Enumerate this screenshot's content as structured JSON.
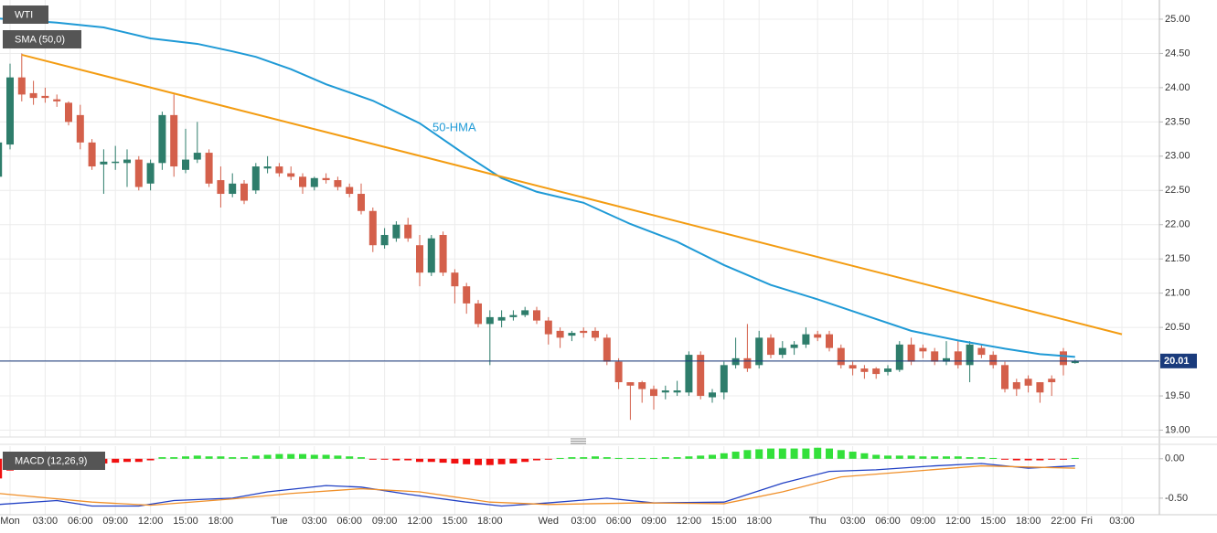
{
  "chart_data": [
    {
      "type": "candlestick",
      "title": "WTI",
      "categories": [
        null,
        "Mon",
        null,
        null,
        "03:00",
        null,
        null,
        "06:00",
        null,
        null,
        "09:00",
        null,
        null,
        "12:00",
        null,
        null,
        "15:00",
        null,
        null,
        "18:00",
        null,
        null,
        null,
        null,
        "Tue",
        null,
        null,
        "03:00",
        null,
        null,
        "06:00",
        null,
        null,
        "09:00",
        null,
        null,
        "12:00",
        null,
        null,
        "15:00",
        null,
        null,
        "18:00",
        null,
        null,
        null,
        null,
        "Wed",
        null,
        null,
        "03:00",
        null,
        null,
        "06:00",
        null,
        null,
        "09:00",
        null,
        null,
        "12:00",
        null,
        null,
        "15:00",
        null,
        null,
        "18:00",
        null,
        null,
        null,
        null,
        "Thu",
        null,
        null,
        "03:00",
        null,
        null,
        "06:00",
        null,
        null,
        "09:00",
        null,
        null,
        "12:00",
        null,
        null,
        "15:00",
        null,
        null,
        "18:00",
        null,
        null,
        "22:00",
        null,
        "Fri",
        null,
        null,
        "03:00"
      ],
      "open": [
        22.7,
        23.17,
        24.15,
        23.92,
        23.88,
        23.83,
        23.78,
        23.6,
        23.2,
        22.88,
        22.9,
        22.9,
        22.95,
        22.6,
        22.9,
        23.6,
        22.8,
        22.95,
        23.05,
        22.65,
        22.45,
        22.6,
        22.5,
        22.82,
        22.85,
        22.75,
        22.7,
        22.55,
        22.68,
        22.65,
        22.55,
        22.45,
        22.2,
        21.7,
        21.8,
        22.0,
        21.7,
        21.3,
        21.85,
        21.3,
        21.1,
        20.85,
        20.55,
        20.6,
        20.65,
        20.68,
        20.75,
        20.6,
        20.45,
        20.38,
        20.45,
        20.45,
        20.35,
        20.0,
        19.7,
        19.7,
        19.6,
        19.55,
        19.55,
        19.55,
        20.1,
        19.48,
        19.55,
        19.95,
        20.05,
        19.95,
        20.35,
        20.1,
        20.2,
        20.25,
        20.4,
        20.4,
        20.2,
        19.95,
        19.9,
        19.9,
        19.85,
        19.88,
        20.25,
        20.2,
        20.15,
        20.0,
        20.15,
        19.95,
        20.2,
        20.1,
        19.95,
        19.7,
        19.75,
        19.7,
        19.75,
        20.15,
        19.98,
        null,
        null,
        null,
        null
      ],
      "high": [
        23.5,
        24.35,
        24.5,
        24.1,
        24.0,
        23.9,
        23.8,
        23.75,
        23.25,
        23.1,
        23.15,
        23.1,
        23.0,
        22.95,
        23.65,
        23.9,
        23.4,
        23.5,
        23.1,
        22.85,
        22.75,
        22.65,
        22.9,
        23.0,
        22.9,
        22.85,
        22.75,
        22.7,
        22.75,
        22.7,
        22.6,
        22.6,
        22.25,
        21.95,
        22.05,
        22.1,
        21.85,
        21.85,
        21.9,
        21.35,
        21.15,
        20.9,
        20.75,
        20.75,
        20.75,
        20.8,
        20.8,
        20.65,
        20.5,
        20.45,
        20.5,
        20.5,
        20.4,
        20.05,
        19.7,
        19.72,
        19.65,
        19.65,
        19.72,
        20.15,
        20.15,
        19.6,
        20.0,
        20.35,
        20.55,
        20.45,
        20.4,
        20.3,
        20.3,
        20.5,
        20.45,
        20.45,
        20.25,
        20.0,
        19.95,
        19.92,
        19.95,
        20.3,
        20.35,
        20.25,
        20.2,
        20.3,
        20.3,
        20.3,
        20.25,
        20.15,
        20.0,
        19.75,
        19.8,
        19.7,
        19.8,
        20.2,
        20.03,
        null,
        null,
        null,
        null
      ],
      "low": [
        22.6,
        23.1,
        23.8,
        23.75,
        23.78,
        23.72,
        23.45,
        23.1,
        22.8,
        22.45,
        22.8,
        22.55,
        22.5,
        22.5,
        22.8,
        22.7,
        22.75,
        22.9,
        22.55,
        22.25,
        22.4,
        22.3,
        22.45,
        22.75,
        22.7,
        22.65,
        22.45,
        22.5,
        22.6,
        22.5,
        22.4,
        22.15,
        21.6,
        21.65,
        21.75,
        21.75,
        21.1,
        21.25,
        21.25,
        20.85,
        20.7,
        20.5,
        19.95,
        20.5,
        20.6,
        20.65,
        20.55,
        20.25,
        20.2,
        20.3,
        20.35,
        20.3,
        19.95,
        19.6,
        19.15,
        19.4,
        19.3,
        19.45,
        19.5,
        19.5,
        19.45,
        19.4,
        19.45,
        19.9,
        19.85,
        19.9,
        20.05,
        20.05,
        20.1,
        20.2,
        20.3,
        20.15,
        19.9,
        19.8,
        19.75,
        19.75,
        19.8,
        19.85,
        19.95,
        20.05,
        19.95,
        19.95,
        19.9,
        19.7,
        20.05,
        19.9,
        19.55,
        19.5,
        19.55,
        19.4,
        19.5,
        19.8,
        19.97,
        null,
        null,
        null,
        null
      ],
      "close": [
        23.2,
        24.15,
        23.9,
        23.85,
        23.85,
        23.8,
        23.5,
        23.2,
        22.85,
        22.92,
        22.92,
        22.95,
        22.55,
        22.9,
        23.6,
        22.85,
        22.95,
        23.05,
        22.6,
        22.45,
        22.6,
        22.35,
        22.85,
        22.85,
        22.75,
        22.7,
        22.55,
        22.68,
        22.65,
        22.55,
        22.45,
        22.2,
        21.7,
        21.85,
        22.0,
        21.8,
        21.3,
        21.8,
        21.3,
        21.1,
        20.85,
        20.55,
        20.65,
        20.65,
        20.68,
        20.75,
        20.6,
        20.4,
        20.35,
        20.42,
        20.42,
        20.35,
        20.0,
        19.7,
        19.65,
        19.6,
        19.5,
        19.58,
        19.58,
        20.1,
        19.5,
        19.55,
        19.95,
        20.05,
        19.9,
        20.35,
        20.1,
        20.2,
        20.25,
        20.4,
        20.35,
        20.2,
        19.95,
        19.9,
        19.85,
        19.82,
        19.9,
        20.25,
        20.0,
        20.15,
        20.0,
        20.05,
        19.95,
        20.25,
        20.1,
        19.95,
        19.6,
        19.6,
        19.65,
        19.55,
        19.7,
        19.95,
        20.01,
        null,
        null,
        null,
        null
      ],
      "up_color": "#2e7d6b",
      "down_color": "#d4604b",
      "overlays": [
        {
          "name": "SMA (50,0)",
          "annotation": "50-HMA",
          "color": "#1f9ad6",
          "x": [
            0,
            5,
            9,
            13,
            17,
            20,
            22,
            25,
            28,
            32,
            36,
            40,
            43,
            46,
            50,
            54,
            58,
            62,
            66,
            70,
            74,
            78,
            82,
            86,
            89,
            92
          ],
          "values": [
            25.01,
            24.95,
            24.88,
            24.72,
            24.64,
            24.53,
            24.45,
            24.27,
            24.05,
            23.81,
            23.48,
            23.01,
            22.68,
            22.48,
            22.32,
            22.01,
            21.75,
            21.41,
            21.12,
            20.91,
            20.68,
            20.45,
            20.31,
            20.19,
            20.11,
            20.07
          ]
        },
        {
          "color": "#f39c12",
          "x": [
            2,
            96
          ],
          "values": [
            24.48,
            20.4
          ]
        }
      ],
      "last_price": 20.01,
      "last_price_color": "#1a3b7c",
      "ylim": [
        18.9,
        25.28
      ],
      "yticks": [
        {
          "value": 19,
          "label": "19.00"
        },
        {
          "value": 19.5,
          "label": "19.50"
        },
        {
          "value": 20,
          "label": "20.00"
        },
        {
          "value": 20.5,
          "label": "20.50"
        },
        {
          "value": 21,
          "label": "21.00"
        },
        {
          "value": 21.5,
          "label": "21.50"
        },
        {
          "value": 22,
          "label": "22.00"
        },
        {
          "value": 22.5,
          "label": "22.50"
        },
        {
          "value": 23,
          "label": "23.00"
        },
        {
          "value": 23.5,
          "label": "23.50"
        },
        {
          "value": 24,
          "label": "24.00"
        },
        {
          "value": 24.5,
          "label": "24.50"
        },
        {
          "value": 25,
          "label": "25.00"
        }
      ],
      "grid": true
    },
    {
      "type": "macd",
      "title": "MACD (12,26,9)",
      "values": [
        -0.25,
        -0.15,
        -0.08,
        -0.07,
        -0.06,
        -0.05,
        -0.05,
        -0.06,
        -0.07,
        -0.06,
        -0.05,
        -0.04,
        -0.04,
        -0.02,
        0.02,
        0.02,
        0.03,
        0.04,
        0.03,
        0.03,
        0.02,
        0.02,
        0.04,
        0.05,
        0.06,
        0.06,
        0.06,
        0.05,
        0.05,
        0.04,
        0.03,
        0.02,
        -0.01,
        -0.01,
        -0.02,
        -0.02,
        -0.04,
        -0.04,
        -0.05,
        -0.06,
        -0.07,
        -0.08,
        -0.08,
        -0.07,
        -0.06,
        -0.04,
        -0.02,
        -0.01,
        0.01,
        0.02,
        0.02,
        0.03,
        0.02,
        0.01,
        0.01,
        0.01,
        0.01,
        0.02,
        0.02,
        0.03,
        0.04,
        0.05,
        0.07,
        0.09,
        0.11,
        0.12,
        0.13,
        0.13,
        0.13,
        0.13,
        0.14,
        0.13,
        0.11,
        0.09,
        0.07,
        0.05,
        0.04,
        0.04,
        0.04,
        0.03,
        0.03,
        0.03,
        0.03,
        0.02,
        0.02,
        0.01,
        -0.01,
        -0.02,
        -0.02,
        -0.02,
        -0.01,
        -0.01,
        0.01,
        null,
        null,
        null,
        null
      ],
      "up_color": "#33e03a",
      "down_color": "#f01010",
      "series": [
        {
          "color": "#2140c4",
          "x": [
            0,
            5,
            8,
            12,
            15,
            20,
            23,
            28,
            31,
            35,
            40,
            43,
            47,
            52,
            56,
            62,
            67,
            71,
            75,
            80,
            84,
            88,
            92
          ],
          "values": [
            -0.58,
            -0.53,
            -0.6,
            -0.6,
            -0.53,
            -0.5,
            -0.42,
            -0.34,
            -0.36,
            -0.45,
            -0.55,
            -0.6,
            -0.56,
            -0.5,
            -0.56,
            -0.55,
            -0.31,
            -0.16,
            -0.14,
            -0.09,
            -0.06,
            -0.12,
            -0.09
          ]
        },
        {
          "color": "#f0902a",
          "x": [
            0,
            8,
            13,
            20,
            25,
            31,
            36,
            42,
            47,
            55,
            62,
            67,
            72,
            78,
            84,
            92
          ],
          "values": [
            -0.44,
            -0.55,
            -0.59,
            -0.51,
            -0.44,
            -0.38,
            -0.42,
            -0.55,
            -0.58,
            -0.56,
            -0.57,
            -0.42,
            -0.23,
            -0.16,
            -0.09,
            -0.12
          ]
        }
      ],
      "ylim": [
        -0.71,
        0.16
      ],
      "yticks": [
        {
          "value": 0,
          "label": "0.00"
        },
        {
          "value": -0.5,
          "label": "-0.50"
        }
      ]
    }
  ]
}
